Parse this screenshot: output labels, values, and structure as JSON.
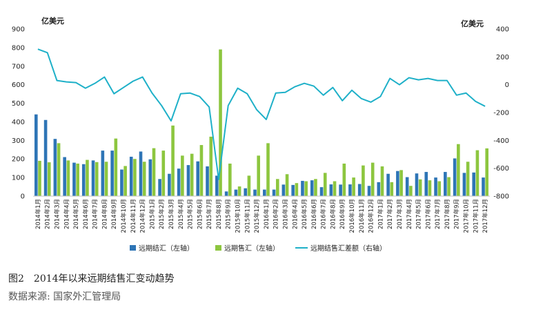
{
  "figure": {
    "number": "图2",
    "title": "2014年以来远期结售汇变动趋势",
    "source": "数据来源: 国家外汇管理局"
  },
  "chart_data": {
    "type": "bar+line",
    "left_axis_unit": "亿美元",
    "right_axis_unit": "亿美元",
    "left_ylim": [
      0,
      900
    ],
    "left_ticks": [
      "0",
      "100",
      "200",
      "300",
      "400",
      "500",
      "600",
      "700",
      "800",
      "900"
    ],
    "right_ylim": [
      -800,
      400
    ],
    "right_ticks": [
      "-800",
      "-600",
      "-400",
      "-200",
      "0",
      "200",
      "400"
    ],
    "grid": false,
    "legend_position": "bottom",
    "categories": [
      "2014年1月",
      "2014年2月",
      "2014年3月",
      "2014年4月",
      "2014年5月",
      "2014年6月",
      "2014年7月",
      "2014年8月",
      "2014年9月",
      "2014年10月",
      "2014年11月",
      "2014年12月",
      "2015年1月",
      "2015年2月",
      "2015年3月",
      "2015年4月",
      "2015年5月",
      "2015年6月",
      "2015年7月",
      "2015年8月",
      "2015年9月",
      "2015年10月",
      "2015年11月",
      "2015年12月",
      "2016年1月",
      "2016年2月",
      "2016年3月",
      "2016年4月",
      "2016年5月",
      "2016年6月",
      "2016年7月",
      "2016年8月",
      "2016年9月",
      "2016年10月",
      "2016年11月",
      "2016年12月",
      "2017年1月",
      "2017年2月",
      "2017年3月",
      "2017年4月",
      "2017年5月",
      "2017年6月",
      "2017年7月",
      "2017年8月",
      "2017年9月",
      "2017年10月",
      "2017年11月",
      "2017年12月"
    ],
    "series": [
      {
        "name": "远期结汇（左轴）",
        "type": "bar",
        "axis": "left",
        "color": "#2E75B6",
        "values": [
          440,
          410,
          308,
          210,
          180,
          172,
          192,
          245,
          245,
          143,
          212,
          240,
          198,
          92,
          120,
          148,
          167,
          187,
          160,
          110,
          25,
          35,
          42,
          35,
          35,
          35,
          62,
          60,
          82,
          85,
          48,
          63,
          62,
          63,
          65,
          55,
          75,
          120,
          135,
          102,
          122,
          130,
          100,
          130,
          203,
          125,
          127,
          100
        ]
      },
      {
        "name": "远期售汇（左轴）",
        "type": "bar",
        "axis": "left",
        "color": "#8DC63F",
        "values": [
          190,
          182,
          285,
          192,
          175,
          195,
          183,
          185,
          310,
          162,
          200,
          185,
          258,
          245,
          380,
          218,
          228,
          275,
          320,
          790,
          175,
          52,
          110,
          218,
          285,
          92,
          118,
          70,
          80,
          92,
          125,
          80,
          175,
          100,
          165,
          180,
          160,
          75,
          140,
          55,
          90,
          85,
          80,
          102,
          280,
          185,
          247,
          257
        ]
      },
      {
        "name": "远期结售汇差额（右轴）",
        "type": "line",
        "axis": "right",
        "color": "#1EB0C8",
        "values": [
          255,
          230,
          30,
          20,
          15,
          -25,
          10,
          55,
          -65,
          -20,
          25,
          55,
          -60,
          -150,
          -260,
          -65,
          -60,
          -85,
          -160,
          -680,
          -150,
          -25,
          -65,
          -180,
          -250,
          -60,
          -55,
          -15,
          10,
          -10,
          -75,
          -20,
          -115,
          -40,
          -100,
          -125,
          -85,
          45,
          0,
          50,
          35,
          45,
          30,
          30,
          -75,
          -60,
          -120,
          -155
        ]
      }
    ]
  }
}
